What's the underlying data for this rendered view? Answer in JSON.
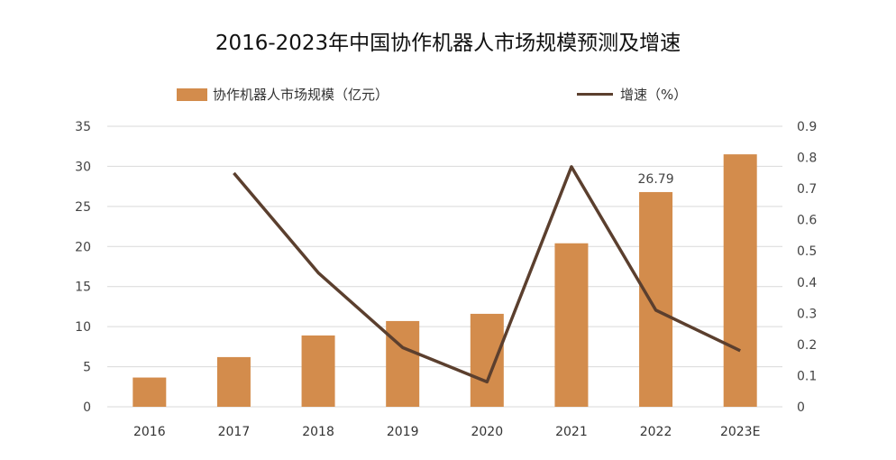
{
  "chart_data": {
    "type": "bar+line",
    "title": "2016-2023年中国协作机器人市场规模预测及增速",
    "categories": [
      "2016",
      "2017",
      "2018",
      "2019",
      "2020",
      "2021",
      "2022",
      "2023E"
    ],
    "series": [
      {
        "name": "协作机器人市场规模（亿元）",
        "type": "bar",
        "axis": "left",
        "color": "#D38C4C",
        "values": [
          3.65,
          6.2,
          8.9,
          10.7,
          11.6,
          20.4,
          26.79,
          31.5
        ]
      },
      {
        "name": "增速（%）",
        "type": "line",
        "axis": "right",
        "color": "#5B3F2E",
        "values": [
          null,
          0.75,
          0.43,
          0.19,
          0.08,
          0.77,
          0.31,
          0.18
        ]
      }
    ],
    "data_labels": [
      {
        "category": "2022",
        "text": "26.79"
      }
    ],
    "left_axis": {
      "ylim": [
        0,
        35
      ],
      "ticks": [
        "0",
        "5",
        "10",
        "15",
        "20",
        "25",
        "30",
        "35"
      ]
    },
    "right_axis": {
      "ylim": [
        0,
        0.9
      ],
      "ticks": [
        "0",
        "0.1",
        "0.2",
        "0.3",
        "0.4",
        "0.5",
        "0.6",
        "0.7",
        "0.8",
        "0.9"
      ]
    },
    "grid": true,
    "legend": "top"
  }
}
